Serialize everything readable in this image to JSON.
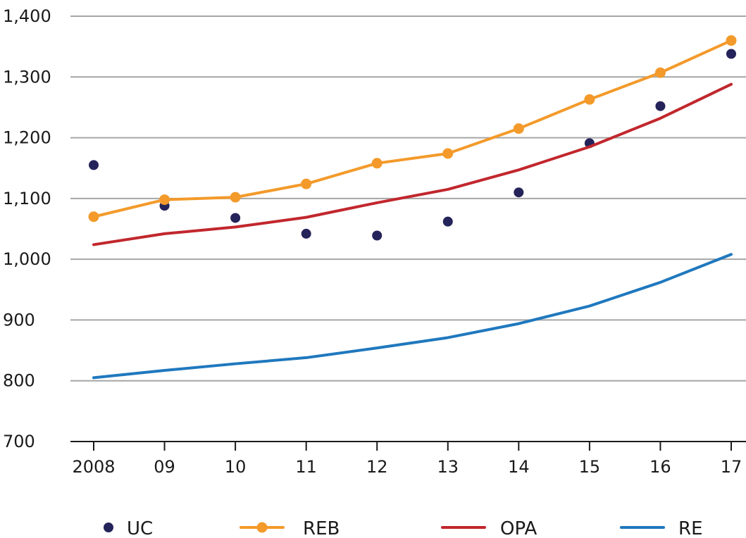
{
  "chart_data": {
    "type": "line",
    "categories": [
      "2008",
      "09",
      "10",
      "11",
      "12",
      "13",
      "14",
      "15",
      "16",
      "17"
    ],
    "ylim": [
      700,
      1400
    ],
    "yticks": [
      700,
      800,
      900,
      1000,
      1100,
      1200,
      1300,
      1400
    ],
    "ytick_labels": [
      "700",
      "800",
      "900",
      "1,000",
      "1,100",
      "1,200",
      "1,300",
      "1,400"
    ],
    "grid": true,
    "legend_position": "bottom",
    "title": "",
    "xlabel": "",
    "ylabel": "",
    "series": [
      {
        "name": "UC",
        "style": "markers",
        "color": "#24235a",
        "values": [
          1155,
          1088,
          1068,
          1042,
          1039,
          1062,
          1110,
          1191,
          1252,
          1338
        ]
      },
      {
        "name": "REB",
        "style": "line-markers",
        "color": "#f39a2b",
        "values": [
          1070,
          1098,
          1102,
          1124,
          1158,
          1174,
          1215,
          1263,
          1307,
          1360
        ]
      },
      {
        "name": "OPA",
        "style": "line",
        "color": "#c1272d",
        "values": [
          1024,
          1042,
          1053,
          1069,
          1093,
          1115,
          1147,
          1185,
          1232,
          1288
        ]
      },
      {
        "name": "RE",
        "style": "line",
        "color": "#1f78be",
        "values": [
          805,
          817,
          828,
          838,
          854,
          871,
          894,
          923,
          962,
          1008
        ]
      }
    ]
  }
}
